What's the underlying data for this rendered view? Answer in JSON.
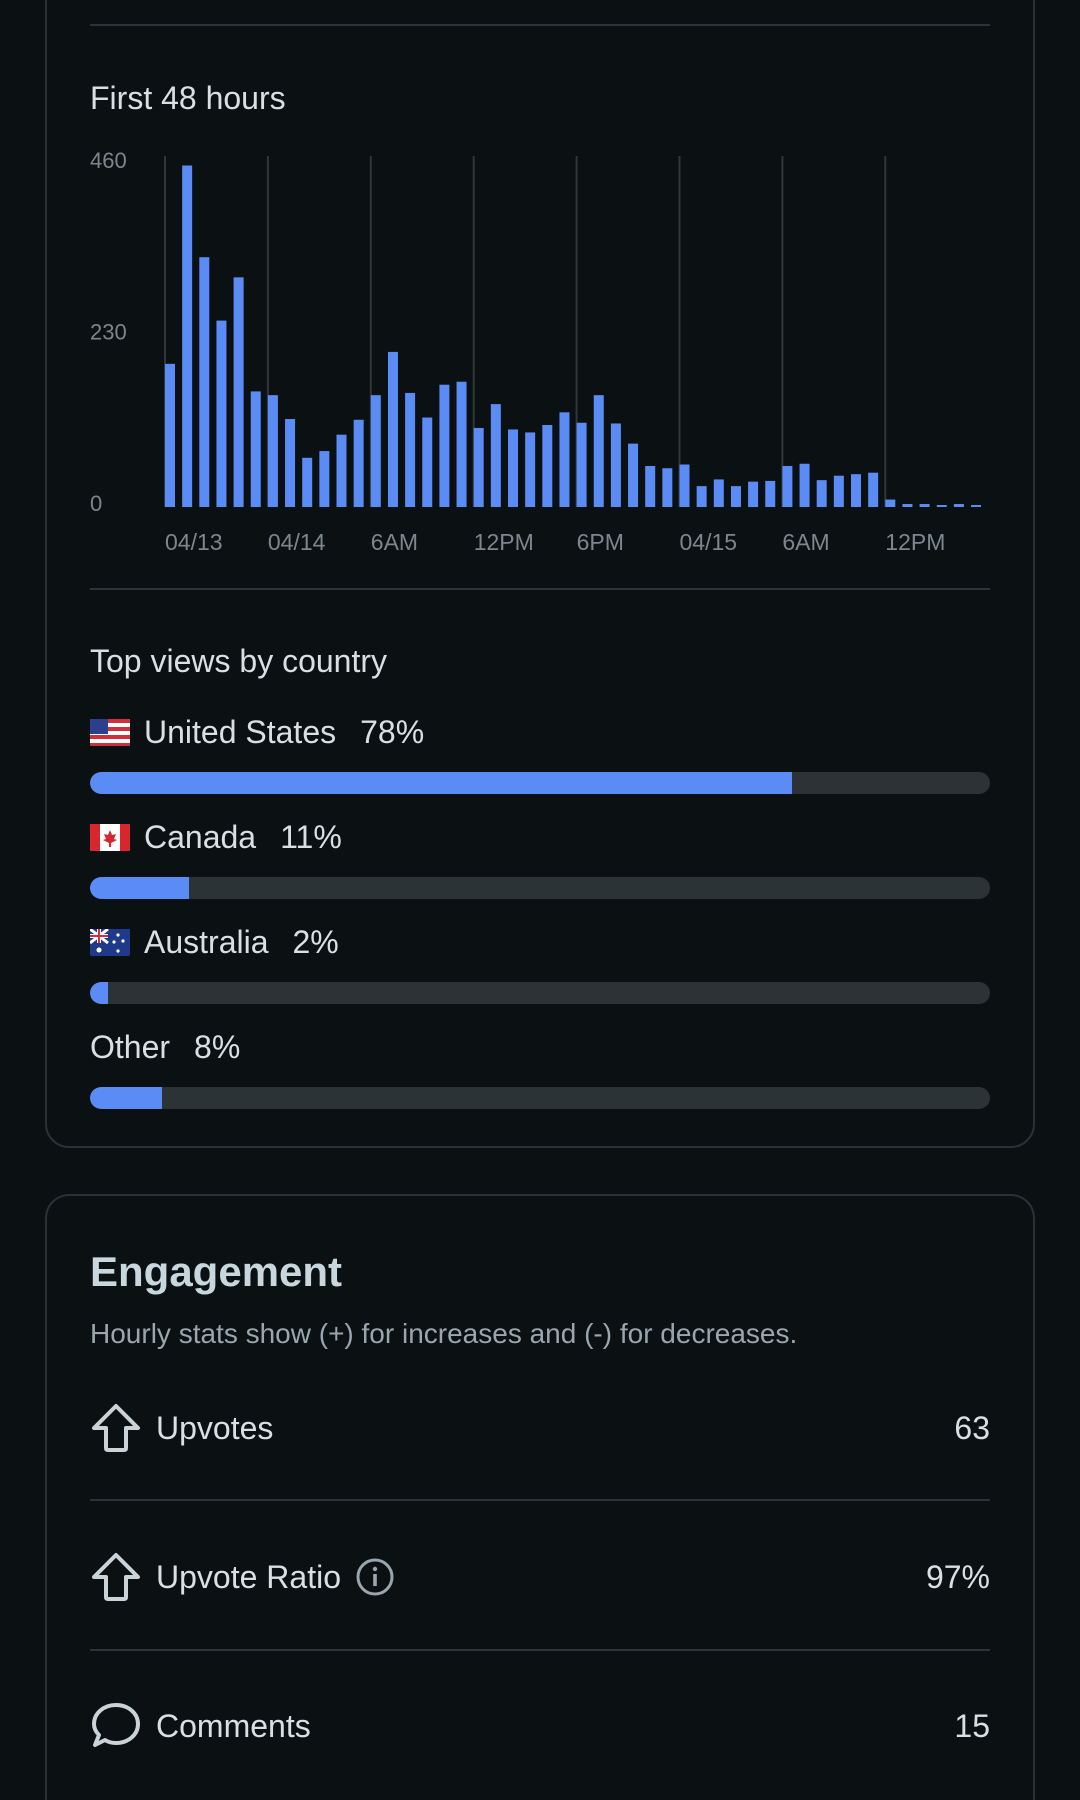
{
  "chart": {
    "title": "First 48 hours",
    "y_ticks": [
      "460",
      "230",
      "0"
    ],
    "x_ticks": [
      "04/13",
      "04/14",
      "6AM",
      "12PM",
      "6PM",
      "04/15",
      "6AM",
      "12PM"
    ]
  },
  "chart_data": {
    "type": "bar",
    "title": "First 48 hours",
    "xlabel": "",
    "ylabel": "",
    "ylim": [
      0,
      460
    ],
    "y_ticks": [
      0,
      230,
      460
    ],
    "x_tick_labels": [
      "04/13",
      "04/14",
      "6AM",
      "12PM",
      "6PM",
      "04/15",
      "6AM",
      "12PM"
    ],
    "grid": "vertical",
    "color": "#5b8cf5",
    "values": [
      192,
      458,
      335,
      250,
      308,
      155,
      150,
      118,
      66,
      75,
      97,
      117,
      150,
      208,
      153,
      120,
      164,
      168,
      106,
      138,
      104,
      100,
      110,
      127,
      113,
      150,
      112,
      85,
      55,
      52,
      57,
      28,
      37,
      28,
      34,
      35,
      55,
      58,
      36,
      42,
      44,
      46,
      10,
      4,
      4,
      2,
      4,
      2
    ]
  },
  "countries": {
    "title": "Top views by country",
    "items": [
      {
        "flag": "us",
        "name": "United States",
        "pct_label": "78%",
        "value": 78
      },
      {
        "flag": "ca",
        "name": "Canada",
        "pct_label": "11%",
        "value": 11
      },
      {
        "flag": "au",
        "name": "Australia",
        "pct_label": "2%",
        "value": 2
      },
      {
        "flag": "",
        "name": "Other",
        "pct_label": "8%",
        "value": 8
      }
    ]
  },
  "engagement": {
    "title": "Engagement",
    "subtitle": "Hourly stats show (+) for increases and (-) for decreases.",
    "stats": [
      {
        "icon": "upvote-icon",
        "label": "Upvotes",
        "value": "63"
      },
      {
        "icon": "upvote-icon",
        "label": "Upvote Ratio",
        "value": "97%"
      },
      {
        "icon": "comment-icon",
        "label": "Comments",
        "value": "15"
      }
    ]
  },
  "colors": {
    "accent": "#5b8cf5",
    "track": "#2b3336",
    "background": "#0b1013"
  }
}
